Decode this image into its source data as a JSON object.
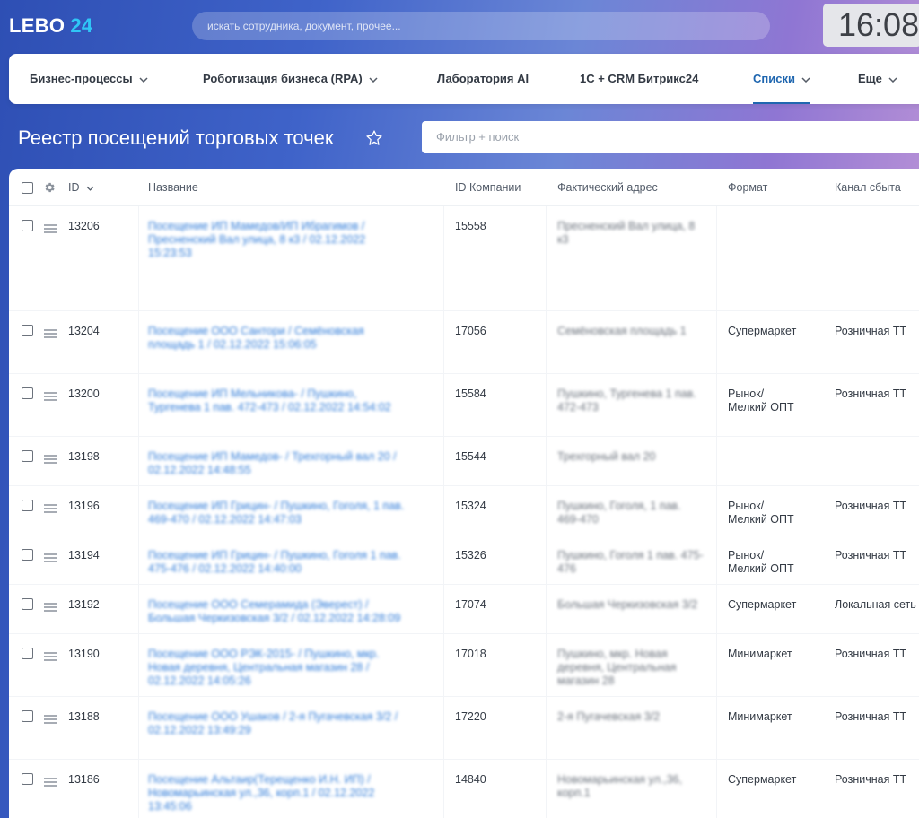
{
  "header": {
    "logo_main": "LEBO",
    "logo_num": "24",
    "search_placeholder": "искать сотрудника, документ, прочее...",
    "clock": "16:08"
  },
  "nav": {
    "items": [
      {
        "label": "Бизнес-процессы",
        "dropdown": true
      },
      {
        "label": "Роботизация бизнеса (RPA)",
        "dropdown": true
      },
      {
        "label": "Лаборатория AI",
        "dropdown": false
      },
      {
        "label": "1С + CRM Битрикс24",
        "dropdown": false
      },
      {
        "label": "Списки",
        "dropdown": true,
        "active": true
      },
      {
        "label": "Еще",
        "dropdown": true
      }
    ]
  },
  "page": {
    "title": "Реестр посещений торговых точек",
    "filter_placeholder": "Фильтр + поиск"
  },
  "table": {
    "columns": {
      "id": "ID",
      "name": "Название",
      "company_id": "ID Компании",
      "address": "Фактический адрес",
      "format": "Формат",
      "channel": "Канал сбыта"
    },
    "rows": [
      {
        "id": "13206",
        "name": "Посещение ИП Мамедов/ИП Ибрагимов / Пресненский Вал улица, 8 к3 / 02.12.2022 15:23:53",
        "company_id": "15558",
        "address": "Пресненский Вал улица, 8 к3",
        "format": "",
        "channel": ""
      },
      {
        "id": "13204",
        "name": "Посещение ООО Сантори / Семёновская площадь 1 / 02.12.2022 15:06:05",
        "company_id": "17056",
        "address": "Семёновская площадь 1",
        "format": "Супермаркет",
        "channel": "Розничная ТТ"
      },
      {
        "id": "13200",
        "name": "Посещение ИП Мельникова- / Пушкино, Тургенева 1 пав. 472-473 / 02.12.2022 14:54:02",
        "company_id": "15584",
        "address": "Пушкино, Тургенева 1 пав. 472-473",
        "format": "Рынок/\nМелкий ОПТ",
        "channel": "Розничная ТТ"
      },
      {
        "id": "13198",
        "name": "Посещение ИП Мамедов- / Трехгорный вал 20 / 02.12.2022 14:48:55",
        "company_id": "15544",
        "address": "Трехгорный вал 20",
        "format": "",
        "channel": ""
      },
      {
        "id": "13196",
        "name": "Посещение ИП Грицин- / Пушкино, Гоголя, 1 пав. 469-470 / 02.12.2022 14:47:03",
        "company_id": "15324",
        "address": "Пушкино, Гоголя, 1 пав. 469-470",
        "format": "Рынок/\nМелкий ОПТ",
        "channel": "Розничная ТТ"
      },
      {
        "id": "13194",
        "name": "Посещение ИП Грицин- / Пушкино, Гоголя 1 пав. 475-476 / 02.12.2022 14:40:00",
        "company_id": "15326",
        "address": "Пушкино, Гоголя 1 пав. 475-476",
        "format": "Рынок/\nМелкий ОПТ",
        "channel": "Розничная ТТ"
      },
      {
        "id": "13192",
        "name": "Посещение ООО Семерамида (Эверест) / Большая Черкизовская 3/2 / 02.12.2022 14:28:09",
        "company_id": "17074",
        "address": "Большая Черкизовская 3/2",
        "format": "Супермаркет",
        "channel": "Локальная сеть"
      },
      {
        "id": "13190",
        "name": "Посещение ООО РЭК-2015- / Пушкино, мкр. Новая деревня, Центральная магазин 28 / 02.12.2022 14:05:26",
        "company_id": "17018",
        "address": "Пушкино, мкр. Новая деревня, Центральная магазин 28",
        "format": "Минимаркет",
        "channel": "Розничная ТТ"
      },
      {
        "id": "13188",
        "name": "Посещение ООО Ушаков / 2-я Пугачевская 3/2 / 02.12.2022 13:49:29",
        "company_id": "17220",
        "address": "2-я Пугачевская 3/2",
        "format": "Минимаркет",
        "channel": "Розничная ТТ"
      },
      {
        "id": "13186",
        "name": "Посещение Альтаир(Терещенко И.Н. ИП) / Новомарьинская ул.,36, корп.1 / 02.12.2022 13:45:06",
        "company_id": "14840",
        "address": "Новомарьинская ул.,36, корп.1",
        "format": "Супермаркет",
        "channel": "Розничная ТТ"
      }
    ]
  },
  "colors": {
    "accent": "#2067b0",
    "logo_accent": "#2fc6f6",
    "link": "#2f7bd8"
  }
}
